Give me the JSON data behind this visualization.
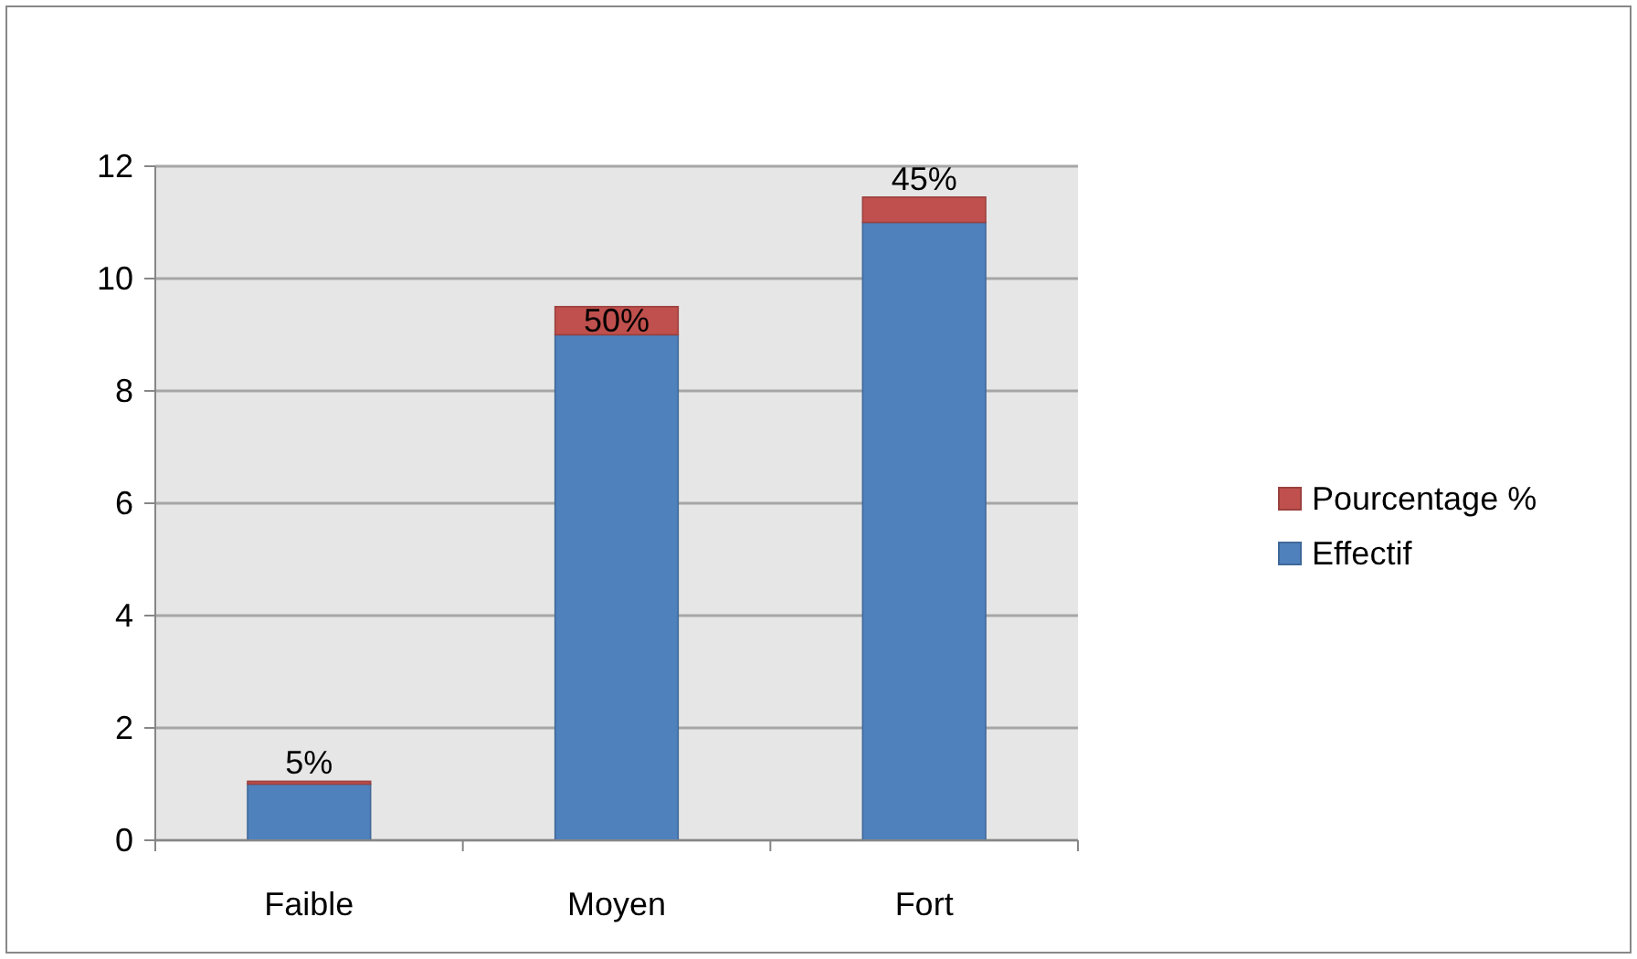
{
  "chart_data": {
    "type": "bar",
    "stacked": true,
    "categories": [
      "Faible",
      "Moyen",
      "Fort"
    ],
    "series": [
      {
        "name": "Effectif",
        "color": "#4f81bd",
        "values": [
          1,
          9,
          11
        ]
      },
      {
        "name": "Pourcentage %",
        "color": "#c0504d",
        "values": [
          0.05,
          0.5,
          0.45
        ],
        "value_labels": [
          "5%",
          "50%",
          "45%"
        ]
      }
    ],
    "ylim": [
      0,
      12
    ],
    "yticks": [
      0,
      2,
      4,
      6,
      8,
      10,
      12
    ],
    "grid": "y",
    "legend": "right"
  }
}
